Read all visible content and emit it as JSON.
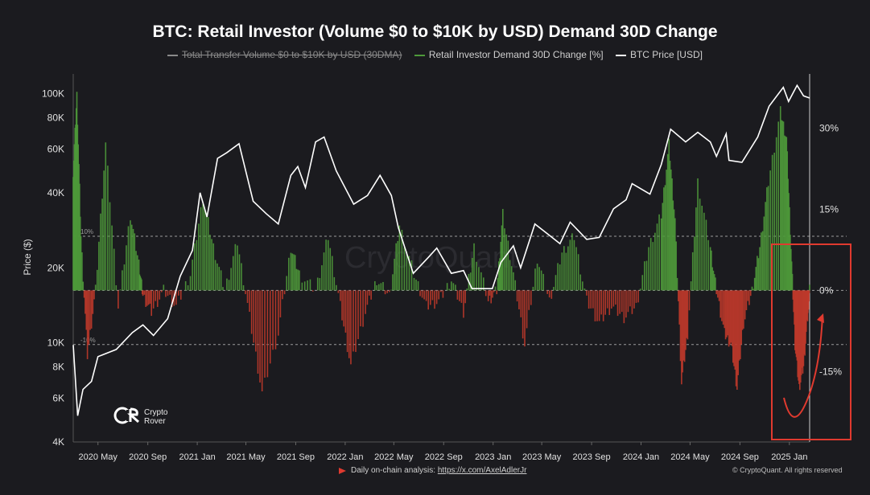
{
  "title": "BTC: Retail Investor (Volume $0 to $10K by USD) Demand 30D Change",
  "legend": [
    {
      "label": "Total Transfer Volume  $0 to $10K by USD (30DMA)",
      "color": "#8a8a8a",
      "struck": true
    },
    {
      "label": "Retail Investor Demand 30D Change [%]",
      "color": "#4e9a3a"
    },
    {
      "label": "BTC Price [USD]",
      "color": "#ffffff"
    }
  ],
  "y_left_label": "Price ($)",
  "left_ticks": [
    "100K",
    "80K",
    "60K",
    "40K",
    "20K",
    "10K",
    "8K",
    "6K",
    "4K"
  ],
  "right_ticks": [
    "30%",
    "15%",
    "0%",
    "-15%"
  ],
  "ref_line_labels": [
    "10%",
    "-10%"
  ],
  "x_ticks": [
    "2020 May",
    "2020 Sep",
    "2021 Jan",
    "2021 May",
    "2021 Sep",
    "2022 Jan",
    "2022 May",
    "2022 Sep",
    "2023 Jan",
    "2023 May",
    "2023 Sep",
    "2024 Jan",
    "2024 May",
    "2024 Sep",
    "2025 Jan"
  ],
  "footer_text": "Daily on-chain analysis: ",
  "footer_link": "https://x.com/AxelAdlerJr",
  "copyright": "© CryptoQuant. All rights reserved",
  "logo": {
    "line1": "Crypto",
    "line2": "Rover"
  },
  "watermark": "CryptoQuant",
  "colors": {
    "price": "#ffffff",
    "demand_pos": "#4e9a3a",
    "demand_neg": "#c0392b",
    "annotation": "#e03a2f",
    "grid": "#bbbbbb"
  },
  "chart_data": {
    "type": "line",
    "title": "BTC: Retail Investor (Volume $0 to $10K by USD) Demand 30D Change",
    "x_range": [
      "2020-03-01",
      "2025-02-20"
    ],
    "left_axis": {
      "label": "Price ($)",
      "scale": "log",
      "range": [
        4000,
        120000
      ]
    },
    "right_axis": {
      "label": "",
      "scale": "linear",
      "range": [
        -28,
        40
      ],
      "unit": "%"
    },
    "reference_lines": [
      0,
      10,
      -10
    ],
    "series": [
      {
        "name": "BTC Price [USD]",
        "axis": "left",
        "points": [
          [
            "2020-03-01",
            9800
          ],
          [
            "2020-03-12",
            5100
          ],
          [
            "2020-03-25",
            6500
          ],
          [
            "2020-04-15",
            7000
          ],
          [
            "2020-05-01",
            8800
          ],
          [
            "2020-06-15",
            9400
          ],
          [
            "2020-07-25",
            11000
          ],
          [
            "2020-08-20",
            11800
          ],
          [
            "2020-09-15",
            10700
          ],
          [
            "2020-10-20",
            12500
          ],
          [
            "2020-11-20",
            18500
          ],
          [
            "2020-12-20",
            23500
          ],
          [
            "2021-01-08",
            40000
          ],
          [
            "2021-01-25",
            32000
          ],
          [
            "2021-02-20",
            55000
          ],
          [
            "2021-03-15",
            58000
          ],
          [
            "2021-04-14",
            63000
          ],
          [
            "2021-05-19",
            37000
          ],
          [
            "2021-06-20",
            33000
          ],
          [
            "2021-07-20",
            30000
          ],
          [
            "2021-08-20",
            47000
          ],
          [
            "2021-09-06",
            51000
          ],
          [
            "2021-09-25",
            42000
          ],
          [
            "2021-10-20",
            64000
          ],
          [
            "2021-11-10",
            67000
          ],
          [
            "2021-12-10",
            49000
          ],
          [
            "2022-01-22",
            36000
          ],
          [
            "2022-02-25",
            39000
          ],
          [
            "2022-03-28",
            47000
          ],
          [
            "2022-04-25",
            39000
          ],
          [
            "2022-05-12",
            29000
          ],
          [
            "2022-06-18",
            19000
          ],
          [
            "2022-07-25",
            22000
          ],
          [
            "2022-08-15",
            24000
          ],
          [
            "2022-09-20",
            19000
          ],
          [
            "2022-10-20",
            19500
          ],
          [
            "2022-11-10",
            16500
          ],
          [
            "2022-12-30",
            16500
          ],
          [
            "2023-01-20",
            21000
          ],
          [
            "2023-02-20",
            24500
          ],
          [
            "2023-03-10",
            20000
          ],
          [
            "2023-04-14",
            30000
          ],
          [
            "2023-05-20",
            27000
          ],
          [
            "2023-06-15",
            25000
          ],
          [
            "2023-07-10",
            30500
          ],
          [
            "2023-08-20",
            26000
          ],
          [
            "2023-09-20",
            26500
          ],
          [
            "2023-10-25",
            34500
          ],
          [
            "2023-11-25",
            37500
          ],
          [
            "2023-12-10",
            43500
          ],
          [
            "2024-01-23",
            39500
          ],
          [
            "2024-02-20",
            52000
          ],
          [
            "2024-03-14",
            72000
          ],
          [
            "2024-04-20",
            64000
          ],
          [
            "2024-05-20",
            70000
          ],
          [
            "2024-06-20",
            64000
          ],
          [
            "2024-07-05",
            56000
          ],
          [
            "2024-07-29",
            69000
          ],
          [
            "2024-08-05",
            54000
          ],
          [
            "2024-09-06",
            53000
          ],
          [
            "2024-10-15",
            67000
          ],
          [
            "2024-11-12",
            89000
          ],
          [
            "2024-12-17",
            106000
          ],
          [
            "2024-12-30",
            93000
          ],
          [
            "2025-01-20",
            108000
          ],
          [
            "2025-02-05",
            98000
          ],
          [
            "2025-02-20",
            96000
          ]
        ]
      },
      {
        "name": "Retail Investor Demand 30D Change [%]",
        "axis": "right",
        "points": [
          [
            "2020-03-01",
            22
          ],
          [
            "2020-03-10",
            36
          ],
          [
            "2020-03-20",
            10
          ],
          [
            "2020-04-05",
            -12
          ],
          [
            "2020-04-25",
            0
          ],
          [
            "2020-05-20",
            27
          ],
          [
            "2020-06-20",
            -3
          ],
          [
            "2020-07-20",
            14
          ],
          [
            "2020-08-10",
            5
          ],
          [
            "2020-08-20",
            -1
          ],
          [
            "2020-09-10",
            -4
          ],
          [
            "2020-10-10",
            0
          ],
          [
            "2020-11-10",
            -3
          ],
          [
            "2020-12-15",
            3
          ],
          [
            "2021-01-15",
            17
          ],
          [
            "2021-02-10",
            8
          ],
          [
            "2021-03-10",
            0
          ],
          [
            "2021-04-10",
            9
          ],
          [
            "2021-05-10",
            -5
          ],
          [
            "2021-06-10",
            -19
          ],
          [
            "2021-07-20",
            -8
          ],
          [
            "2021-08-20",
            8
          ],
          [
            "2021-09-10",
            3
          ],
          [
            "2021-10-20",
            0
          ],
          [
            "2021-11-20",
            10
          ],
          [
            "2021-12-20",
            -3
          ],
          [
            "2022-01-15",
            -14
          ],
          [
            "2022-02-20",
            -4
          ],
          [
            "2022-03-20",
            2
          ],
          [
            "2022-04-20",
            -1
          ],
          [
            "2022-05-15",
            12
          ],
          [
            "2022-06-20",
            3
          ],
          [
            "2022-07-20",
            -3
          ],
          [
            "2022-08-20",
            -2
          ],
          [
            "2022-09-20",
            2
          ],
          [
            "2022-10-20",
            -4
          ],
          [
            "2022-11-15",
            8
          ],
          [
            "2022-12-20",
            -2
          ],
          [
            "2023-01-10",
            0
          ],
          [
            "2023-01-25",
            14
          ],
          [
            "2023-02-20",
            3
          ],
          [
            "2023-03-20",
            -10
          ],
          [
            "2023-04-20",
            6
          ],
          [
            "2023-05-20",
            -2
          ],
          [
            "2023-06-20",
            7
          ],
          [
            "2023-07-20",
            10
          ],
          [
            "2023-08-20",
            -2
          ],
          [
            "2023-09-20",
            -6
          ],
          [
            "2023-10-20",
            -3
          ],
          [
            "2023-11-20",
            -5
          ],
          [
            "2023-12-20",
            -3
          ],
          [
            "2024-01-20",
            8
          ],
          [
            "2024-02-20",
            14
          ],
          [
            "2024-03-10",
            27
          ],
          [
            "2024-03-25",
            13
          ],
          [
            "2024-04-10",
            -17
          ],
          [
            "2024-04-25",
            -8
          ],
          [
            "2024-05-20",
            20
          ],
          [
            "2024-06-20",
            8
          ],
          [
            "2024-07-05",
            0
          ],
          [
            "2024-07-25",
            -8
          ],
          [
            "2024-08-10",
            -10
          ],
          [
            "2024-08-25",
            -18
          ],
          [
            "2024-09-10",
            -6
          ],
          [
            "2024-10-01",
            0
          ],
          [
            "2024-10-20",
            8
          ],
          [
            "2024-11-10",
            20
          ],
          [
            "2024-12-10",
            33
          ],
          [
            "2024-12-25",
            28
          ],
          [
            "2025-01-05",
            8
          ],
          [
            "2025-01-15",
            -10
          ],
          [
            "2025-01-25",
            -18
          ],
          [
            "2025-02-05",
            -14
          ],
          [
            "2025-02-15",
            -5
          ],
          [
            "2025-02-20",
            0
          ]
        ]
      }
    ]
  }
}
